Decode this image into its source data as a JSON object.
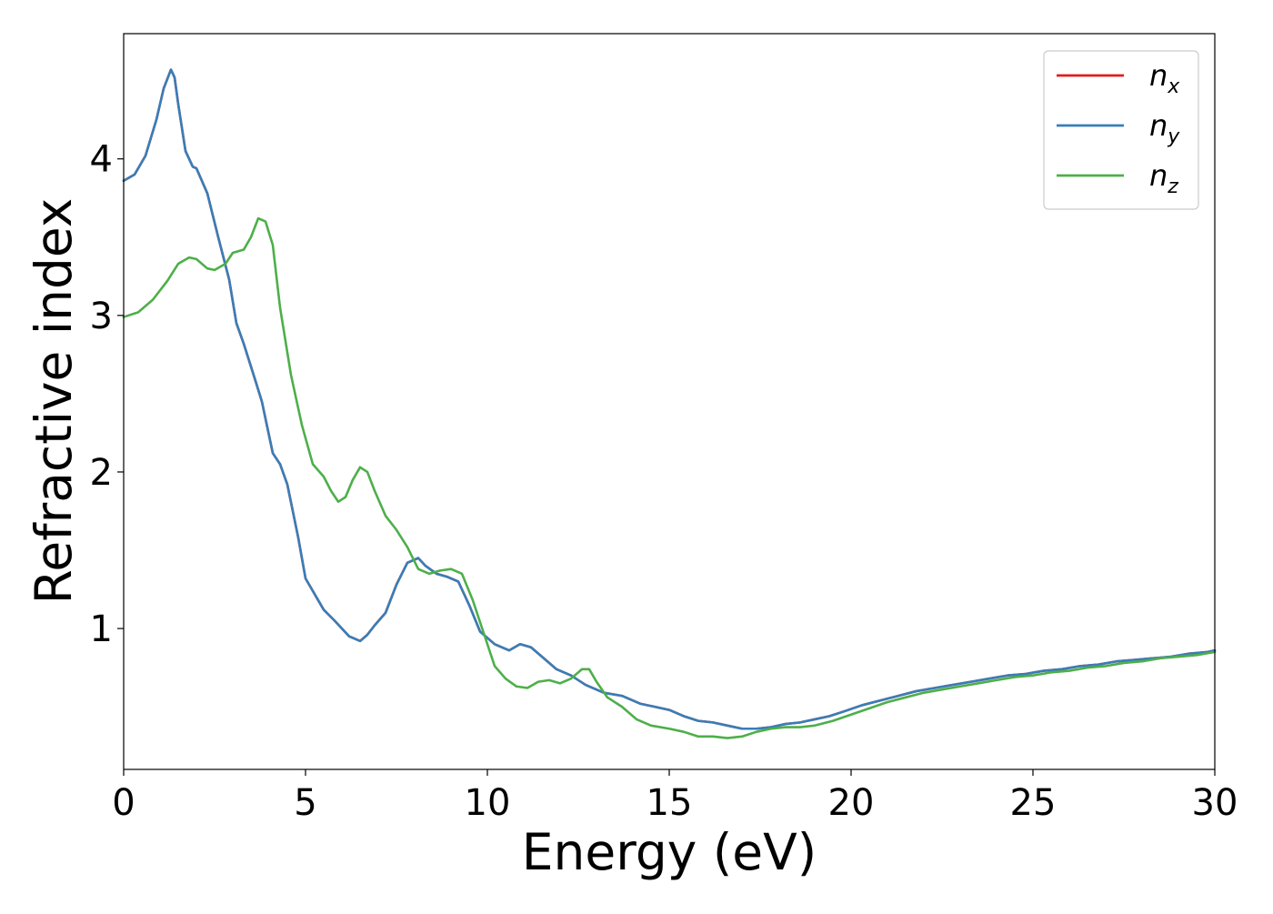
{
  "chart_data": {
    "type": "line",
    "title": "",
    "xlabel": "Energy (eV)",
    "ylabel": "Refractive index",
    "xlim": [
      0,
      30
    ],
    "ylim": [
      0.1,
      4.8
    ],
    "xticks": [
      0,
      5,
      10,
      15,
      20,
      25,
      30
    ],
    "xtick_labels": [
      "0",
      "5",
      "10",
      "15",
      "20",
      "25",
      "30"
    ],
    "yticks": [
      1,
      2,
      3,
      4
    ],
    "ytick_labels": [
      "1",
      "2",
      "3",
      "4"
    ],
    "grid": false,
    "legend_position": "top-right",
    "series": [
      {
        "name": "n_x",
        "legend_base": "n",
        "legend_sub": "x",
        "color": "#e41a1c",
        "x": [
          0,
          0.3,
          0.6,
          0.9,
          1.1,
          1.3,
          1.4,
          1.5,
          1.7,
          1.9,
          2.0,
          2.3,
          2.6,
          2.9,
          3.1,
          3.3,
          3.6,
          3.8,
          4.1,
          4.3,
          4.5,
          4.8,
          5.0,
          5.3,
          5.5,
          5.8,
          6.2,
          6.5,
          6.7,
          6.9,
          7.2,
          7.5,
          7.8,
          8.1,
          8.3,
          8.6,
          8.9,
          9.2,
          9.5,
          9.8,
          10.2,
          10.6,
          10.9,
          11.2,
          11.6,
          11.9,
          12.3,
          12.7,
          13.2,
          13.7,
          14.2,
          14.6,
          15.0,
          15.4,
          15.8,
          16.2,
          16.6,
          17.0,
          17.4,
          17.8,
          18.2,
          18.6,
          19.0,
          19.4,
          19.8,
          20.3,
          20.8,
          21.3,
          21.8,
          22.3,
          22.8,
          23.3,
          23.8,
          24.3,
          24.8,
          25.3,
          25.8,
          26.3,
          26.8,
          27.3,
          27.8,
          28.3,
          28.8,
          29.3,
          29.8,
          30.0
        ],
        "y": [
          3.86,
          3.9,
          4.02,
          4.25,
          4.45,
          4.57,
          4.52,
          4.35,
          4.05,
          3.95,
          3.94,
          3.78,
          3.5,
          3.23,
          2.95,
          2.82,
          2.6,
          2.45,
          2.12,
          2.05,
          1.92,
          1.58,
          1.32,
          1.2,
          1.12,
          1.05,
          0.95,
          0.92,
          0.96,
          1.02,
          1.1,
          1.28,
          1.42,
          1.45,
          1.4,
          1.35,
          1.33,
          1.3,
          1.15,
          0.98,
          0.9,
          0.86,
          0.9,
          0.88,
          0.8,
          0.74,
          0.7,
          0.64,
          0.59,
          0.57,
          0.52,
          0.5,
          0.48,
          0.44,
          0.41,
          0.4,
          0.38,
          0.36,
          0.36,
          0.37,
          0.39,
          0.4,
          0.42,
          0.44,
          0.47,
          0.51,
          0.54,
          0.57,
          0.6,
          0.62,
          0.64,
          0.66,
          0.68,
          0.7,
          0.71,
          0.73,
          0.74,
          0.76,
          0.77,
          0.79,
          0.8,
          0.81,
          0.82,
          0.84,
          0.85,
          0.86
        ]
      },
      {
        "name": "n_y",
        "legend_base": "n",
        "legend_sub": "y",
        "color": "#377eb8",
        "x": [
          0,
          0.3,
          0.6,
          0.9,
          1.1,
          1.3,
          1.4,
          1.5,
          1.7,
          1.9,
          2.0,
          2.3,
          2.6,
          2.9,
          3.1,
          3.3,
          3.6,
          3.8,
          4.1,
          4.3,
          4.5,
          4.8,
          5.0,
          5.3,
          5.5,
          5.8,
          6.2,
          6.5,
          6.7,
          6.9,
          7.2,
          7.5,
          7.8,
          8.1,
          8.3,
          8.6,
          8.9,
          9.2,
          9.5,
          9.8,
          10.2,
          10.6,
          10.9,
          11.2,
          11.6,
          11.9,
          12.3,
          12.7,
          13.2,
          13.7,
          14.2,
          14.6,
          15.0,
          15.4,
          15.8,
          16.2,
          16.6,
          17.0,
          17.4,
          17.8,
          18.2,
          18.6,
          19.0,
          19.4,
          19.8,
          20.3,
          20.8,
          21.3,
          21.8,
          22.3,
          22.8,
          23.3,
          23.8,
          24.3,
          24.8,
          25.3,
          25.8,
          26.3,
          26.8,
          27.3,
          27.8,
          28.3,
          28.8,
          29.3,
          29.8,
          30.0
        ],
        "y": [
          3.86,
          3.9,
          4.02,
          4.25,
          4.45,
          4.57,
          4.52,
          4.35,
          4.05,
          3.95,
          3.94,
          3.78,
          3.5,
          3.23,
          2.95,
          2.82,
          2.6,
          2.45,
          2.12,
          2.05,
          1.92,
          1.58,
          1.32,
          1.2,
          1.12,
          1.05,
          0.95,
          0.92,
          0.96,
          1.02,
          1.1,
          1.28,
          1.42,
          1.45,
          1.4,
          1.35,
          1.33,
          1.3,
          1.15,
          0.98,
          0.9,
          0.86,
          0.9,
          0.88,
          0.8,
          0.74,
          0.7,
          0.64,
          0.59,
          0.57,
          0.52,
          0.5,
          0.48,
          0.44,
          0.41,
          0.4,
          0.38,
          0.36,
          0.36,
          0.37,
          0.39,
          0.4,
          0.42,
          0.44,
          0.47,
          0.51,
          0.54,
          0.57,
          0.6,
          0.62,
          0.64,
          0.66,
          0.68,
          0.7,
          0.71,
          0.73,
          0.74,
          0.76,
          0.77,
          0.79,
          0.8,
          0.81,
          0.82,
          0.84,
          0.85,
          0.86
        ]
      },
      {
        "name": "n_z",
        "legend_base": "n",
        "legend_sub": "z",
        "color": "#4daf4a",
        "x": [
          0,
          0.4,
          0.8,
          1.2,
          1.5,
          1.8,
          2.0,
          2.3,
          2.5,
          2.8,
          3.0,
          3.3,
          3.5,
          3.7,
          3.9,
          4.1,
          4.3,
          4.6,
          4.9,
          5.2,
          5.5,
          5.7,
          5.9,
          6.1,
          6.3,
          6.5,
          6.7,
          6.9,
          7.2,
          7.5,
          7.8,
          8.1,
          8.4,
          8.7,
          9.0,
          9.3,
          9.6,
          9.9,
          10.2,
          10.5,
          10.8,
          11.1,
          11.4,
          11.7,
          12.0,
          12.3,
          12.6,
          12.8,
          13.0,
          13.3,
          13.7,
          14.1,
          14.5,
          15.0,
          15.4,
          15.8,
          16.2,
          16.6,
          17.0,
          17.4,
          17.8,
          18.2,
          18.6,
          19.0,
          19.5,
          20.0,
          20.5,
          21.0,
          21.5,
          22.0,
          22.5,
          23.0,
          23.5,
          24.0,
          24.5,
          25.0,
          25.5,
          26.0,
          26.5,
          27.0,
          27.5,
          28.0,
          28.5,
          29.0,
          29.5,
          30.0
        ],
        "y": [
          2.99,
          3.02,
          3.1,
          3.22,
          3.33,
          3.37,
          3.36,
          3.3,
          3.29,
          3.33,
          3.4,
          3.42,
          3.5,
          3.62,
          3.6,
          3.45,
          3.05,
          2.62,
          2.3,
          2.05,
          1.97,
          1.88,
          1.81,
          1.84,
          1.95,
          2.03,
          2.0,
          1.88,
          1.72,
          1.63,
          1.52,
          1.38,
          1.35,
          1.37,
          1.38,
          1.35,
          1.18,
          0.97,
          0.76,
          0.68,
          0.63,
          0.62,
          0.66,
          0.67,
          0.65,
          0.68,
          0.74,
          0.74,
          0.66,
          0.56,
          0.5,
          0.42,
          0.38,
          0.36,
          0.34,
          0.31,
          0.31,
          0.3,
          0.31,
          0.34,
          0.36,
          0.37,
          0.37,
          0.38,
          0.41,
          0.45,
          0.49,
          0.53,
          0.56,
          0.59,
          0.61,
          0.63,
          0.65,
          0.67,
          0.69,
          0.7,
          0.72,
          0.73,
          0.75,
          0.76,
          0.78,
          0.79,
          0.81,
          0.82,
          0.83,
          0.85
        ]
      }
    ]
  }
}
